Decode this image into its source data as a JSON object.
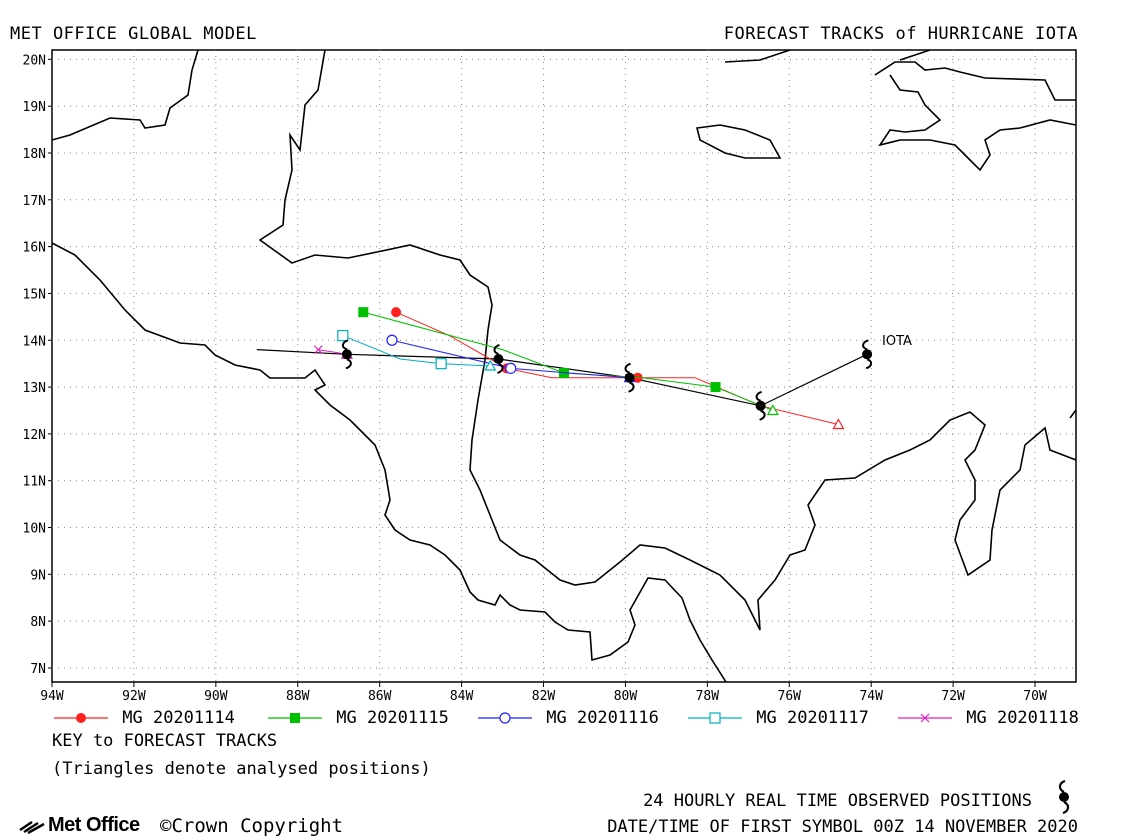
{
  "header": {
    "left_title": "MET OFFICE GLOBAL MODEL",
    "right_title": "FORECAST TRACKS of HURRICANE IOTA"
  },
  "map": {
    "storm_label": "IOTA",
    "lon_range": [
      -94,
      -69
    ],
    "lat_range": [
      6.7,
      20.2
    ],
    "lon_ticks": [
      "94W",
      "92W",
      "90W",
      "88W",
      "86W",
      "84W",
      "82W",
      "80W",
      "78W",
      "76W",
      "74W",
      "72W",
      "70W"
    ],
    "lat_ticks": [
      "7N",
      "8N",
      "9N",
      "10N",
      "11N",
      "12N",
      "13N",
      "14N",
      "15N",
      "16N",
      "17N",
      "18N",
      "19N",
      "20N"
    ],
    "grid": "dotted"
  },
  "observed_track": {
    "color": "#000000",
    "points": [
      [
        -74.1,
        13.7
      ],
      [
        -76.7,
        12.6
      ],
      [
        -79.9,
        13.2
      ],
      [
        -83.1,
        13.6
      ],
      [
        -86.8,
        13.7
      ]
    ],
    "extension": [
      [
        -86.8,
        13.7
      ],
      [
        -89.0,
        13.8
      ]
    ]
  },
  "forecast_tracks": [
    {
      "name": "MG 20201114",
      "color": "#ff2020",
      "marker": "filled-circle",
      "points": [
        [
          -74.8,
          12.2
        ],
        [
          -76.7,
          12.6
        ],
        [
          -78.3,
          13.2
        ],
        [
          -79.7,
          13.2
        ],
        [
          -81.8,
          13.2
        ],
        [
          -82.9,
          13.4
        ],
        [
          -84.3,
          14.1
        ],
        [
          -85.6,
          14.6
        ]
      ]
    },
    {
      "name": "MG 20201115",
      "color": "#00c000",
      "marker": "filled-square",
      "points": [
        [
          -76.4,
          12.5
        ],
        [
          -77.8,
          13.0
        ],
        [
          -79.6,
          13.2
        ],
        [
          -81.5,
          13.3
        ],
        [
          -83.0,
          13.8
        ],
        [
          -86.4,
          14.6
        ]
      ]
    },
    {
      "name": "MG 20201116",
      "color": "#2020ff",
      "marker": "open-circle",
      "points": [
        [
          -79.9,
          13.2
        ],
        [
          -82.8,
          13.4
        ],
        [
          -85.7,
          14.0
        ]
      ]
    },
    {
      "name": "MG 20201117",
      "color": "#00b0c0",
      "marker": "open-square",
      "points": [
        [
          -83.3,
          13.45
        ],
        [
          -84.5,
          13.5
        ],
        [
          -85.5,
          13.6
        ],
        [
          -86.9,
          14.1
        ]
      ]
    },
    {
      "name": "MG 20201118",
      "color": "#e020c0",
      "marker": "cross",
      "points": [
        [
          -86.8,
          13.7
        ],
        [
          -87.5,
          13.8
        ]
      ]
    }
  ],
  "key": {
    "title": "KEY to FORECAST TRACKS",
    "note": "(Triangles denote analysed positions)"
  },
  "footer": {
    "logo_text": "Met Office",
    "copyright": "©Crown Copyright",
    "observed_text": "24 HOURLY REAL TIME OBSERVED POSITIONS",
    "datetime_text": "DATE/TIME OF FIRST SYMBOL 00Z 14 NOVEMBER 2020"
  }
}
